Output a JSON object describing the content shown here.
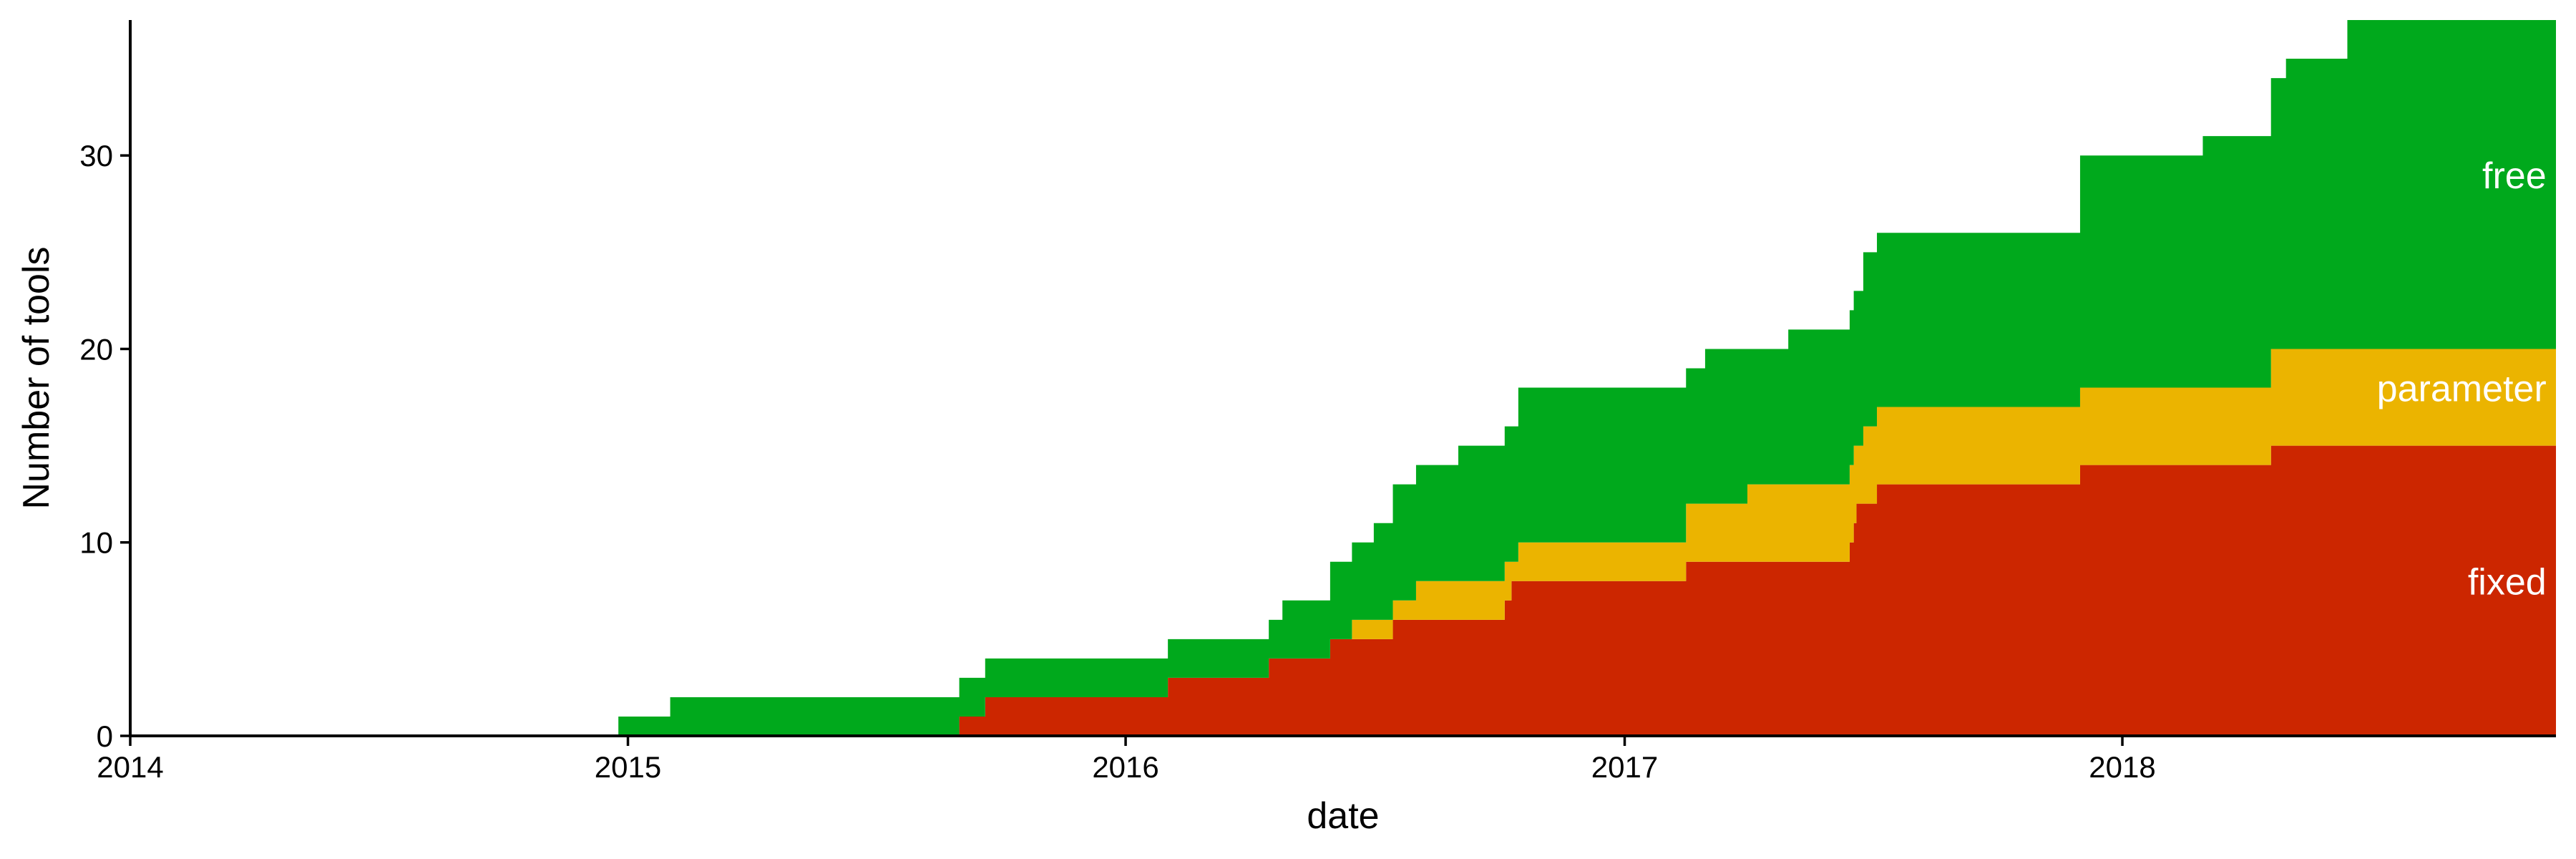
{
  "chart_data": {
    "type": "area",
    "stacked": true,
    "step": true,
    "xlabel": "date",
    "ylabel": "Number of tools",
    "xlim": [
      "2014-01-01",
      "2018-11-15"
    ],
    "ylim": [
      0,
      37
    ],
    "x_ticks": [
      "2014",
      "2015",
      "2016",
      "2017",
      "2018"
    ],
    "y_ticks": [
      0,
      10,
      20,
      30
    ],
    "grid": false,
    "legend": "direct labels on areas",
    "series": [
      {
        "name": "fixed",
        "color": "#CC2600",
        "points": [
          [
            "2014-01-01",
            0
          ],
          [
            "2015-09-01",
            1
          ],
          [
            "2015-09-20",
            2
          ],
          [
            "2016-02-01",
            3
          ],
          [
            "2016-04-15",
            4
          ],
          [
            "2016-05-30",
            5
          ],
          [
            "2016-07-15",
            6
          ],
          [
            "2016-10-05",
            7
          ],
          [
            "2016-10-10",
            8
          ],
          [
            "2017-02-15",
            9
          ],
          [
            "2017-06-15",
            10
          ],
          [
            "2017-06-18",
            11
          ],
          [
            "2017-06-20",
            12
          ],
          [
            "2017-07-05",
            13
          ],
          [
            "2017-12-01",
            14
          ],
          [
            "2018-04-20",
            15
          ]
        ]
      },
      {
        "name": "parameter",
        "color": "#EBB400",
        "points": [
          [
            "2014-01-01",
            0
          ],
          [
            "2016-06-15",
            1
          ],
          [
            "2016-08-01",
            2
          ],
          [
            "2016-10-10",
            1
          ],
          [
            "2016-10-15",
            2
          ],
          [
            "2017-02-15",
            3
          ],
          [
            "2017-04-01",
            4
          ],
          [
            "2017-06-20",
            3
          ],
          [
            "2017-06-25",
            4
          ],
          [
            "2018-04-20",
            5
          ]
        ]
      },
      {
        "name": "free",
        "color": "#00A91C",
        "points": [
          [
            "2014-01-01",
            0
          ],
          [
            "2014-12-25",
            1
          ],
          [
            "2015-02-01",
            2
          ],
          [
            "2015-09-01",
            2
          ],
          [
            "2015-09-20",
            2
          ],
          [
            "2016-02-01",
            2
          ],
          [
            "2016-04-15",
            2
          ],
          [
            "2016-04-25",
            3
          ],
          [
            "2016-05-15",
            3
          ],
          [
            "2016-05-30",
            4
          ],
          [
            "2016-06-20",
            4
          ],
          [
            "2016-07-01",
            5
          ],
          [
            "2016-07-15",
            6
          ],
          [
            "2016-08-20",
            6
          ],
          [
            "2016-09-01",
            7
          ],
          [
            "2016-10-10",
            7
          ],
          [
            "2016-10-15",
            8
          ],
          [
            "2017-01-01",
            8
          ],
          [
            "2017-02-15",
            7
          ],
          [
            "2017-03-01",
            8
          ],
          [
            "2017-04-01",
            7
          ],
          [
            "2017-05-01",
            8
          ],
          [
            "2017-06-20",
            8
          ],
          [
            "2017-06-25",
            9
          ],
          [
            "2017-07-05",
            9
          ],
          [
            "2017-12-01",
            12
          ],
          [
            "2018-01-01",
            12
          ],
          [
            "2018-03-01",
            13
          ],
          [
            "2018-04-20",
            14
          ],
          [
            "2018-05-01",
            15
          ],
          [
            "2018-06-15",
            17
          ]
        ]
      }
    ],
    "annotations": [
      {
        "text": "free",
        "x": "2018-11-08",
        "y": 28.3
      },
      {
        "text": "parameter",
        "x": "2018-11-08",
        "y": 17.3
      },
      {
        "text": "fixed",
        "x": "2018-11-08",
        "y": 7.3
      }
    ]
  }
}
